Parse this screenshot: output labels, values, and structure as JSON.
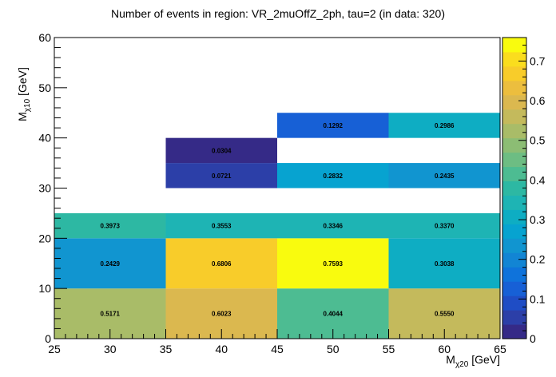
{
  "chart_data": {
    "type": "heatmap",
    "title": "Number of events in region: VR_2muOffZ_2ph, tau=2 (in data: 320)",
    "xlabel": {
      "main": "M",
      "sub": "χ20",
      "unit": " [GeV]"
    },
    "ylabel": {
      "main": "M",
      "sub": "χ10",
      "unit": " [GeV]"
    },
    "xlim": [
      25,
      65
    ],
    "ylim": [
      0,
      60
    ],
    "x_ticks": [
      "25",
      "30",
      "35",
      "40",
      "45",
      "50",
      "55",
      "60",
      "65"
    ],
    "y_ticks": [
      "0",
      "10",
      "20",
      "30",
      "40",
      "50",
      "60"
    ],
    "zlim": [
      0,
      0.7593
    ],
    "z_ticks": [
      "0",
      "0.1",
      "0.2",
      "0.3",
      "0.4",
      "0.5",
      "0.6",
      "0.7"
    ],
    "cells": [
      {
        "x0": 25,
        "x1": 35,
        "y0": 0,
        "y1": 10,
        "value": 0.5171,
        "label": "0.5171"
      },
      {
        "x0": 35,
        "x1": 45,
        "y0": 0,
        "y1": 10,
        "value": 0.6023,
        "label": "0.6023"
      },
      {
        "x0": 45,
        "x1": 55,
        "y0": 0,
        "y1": 10,
        "value": 0.4044,
        "label": "0.4044"
      },
      {
        "x0": 55,
        "x1": 65,
        "y0": 0,
        "y1": 10,
        "value": 0.555,
        "label": "0.5550"
      },
      {
        "x0": 25,
        "x1": 35,
        "y0": 10,
        "y1": 20,
        "value": 0.2429,
        "label": "0.2429"
      },
      {
        "x0": 35,
        "x1": 45,
        "y0": 10,
        "y1": 20,
        "value": 0.6806,
        "label": "0.6806"
      },
      {
        "x0": 45,
        "x1": 55,
        "y0": 10,
        "y1": 20,
        "value": 0.7593,
        "label": "0.7593"
      },
      {
        "x0": 55,
        "x1": 65,
        "y0": 10,
        "y1": 20,
        "value": 0.3038,
        "label": "0.3038"
      },
      {
        "x0": 25,
        "x1": 35,
        "y0": 20,
        "y1": 25,
        "value": 0.3973,
        "label": "0.3973"
      },
      {
        "x0": 35,
        "x1": 45,
        "y0": 20,
        "y1": 25,
        "value": 0.3553,
        "label": "0.3553"
      },
      {
        "x0": 45,
        "x1": 55,
        "y0": 20,
        "y1": 25,
        "value": 0.3346,
        "label": "0.3346"
      },
      {
        "x0": 55,
        "x1": 65,
        "y0": 20,
        "y1": 25,
        "value": 0.337,
        "label": "0.3370"
      },
      {
        "x0": 35,
        "x1": 45,
        "y0": 30,
        "y1": 35,
        "value": 0.0721,
        "label": "0.0721"
      },
      {
        "x0": 45,
        "x1": 55,
        "y0": 30,
        "y1": 35,
        "value": 0.2832,
        "label": "0.2832"
      },
      {
        "x0": 55,
        "x1": 65,
        "y0": 30,
        "y1": 35,
        "value": 0.2435,
        "label": "0.2435"
      },
      {
        "x0": 35,
        "x1": 45,
        "y0": 35,
        "y1": 40,
        "value": 0.0304,
        "label": "0.0304"
      },
      {
        "x0": 45,
        "x1": 55,
        "y0": 40,
        "y1": 45,
        "value": 0.1292,
        "label": "0.1292"
      },
      {
        "x0": 55,
        "x1": 65,
        "y0": 40,
        "y1": 45,
        "value": 0.2986,
        "label": "0.2986"
      }
    ],
    "palette": [
      "#352a87",
      "#2c3fa8",
      "#1f4dc5",
      "#1760d6",
      "#0f73db",
      "#1285d4",
      "#1195d0",
      "#07a3d0",
      "#0eadc3",
      "#1eb4b4",
      "#2db8a3",
      "#4dbc92",
      "#6dbd83",
      "#8cbd74",
      "#a9bc68",
      "#c4ba5c",
      "#dbb84f",
      "#ecbe3e",
      "#f8cc2a",
      "#fadd1e",
      "#f9fb0e"
    ],
    "grid": false,
    "colorbar": "right"
  }
}
